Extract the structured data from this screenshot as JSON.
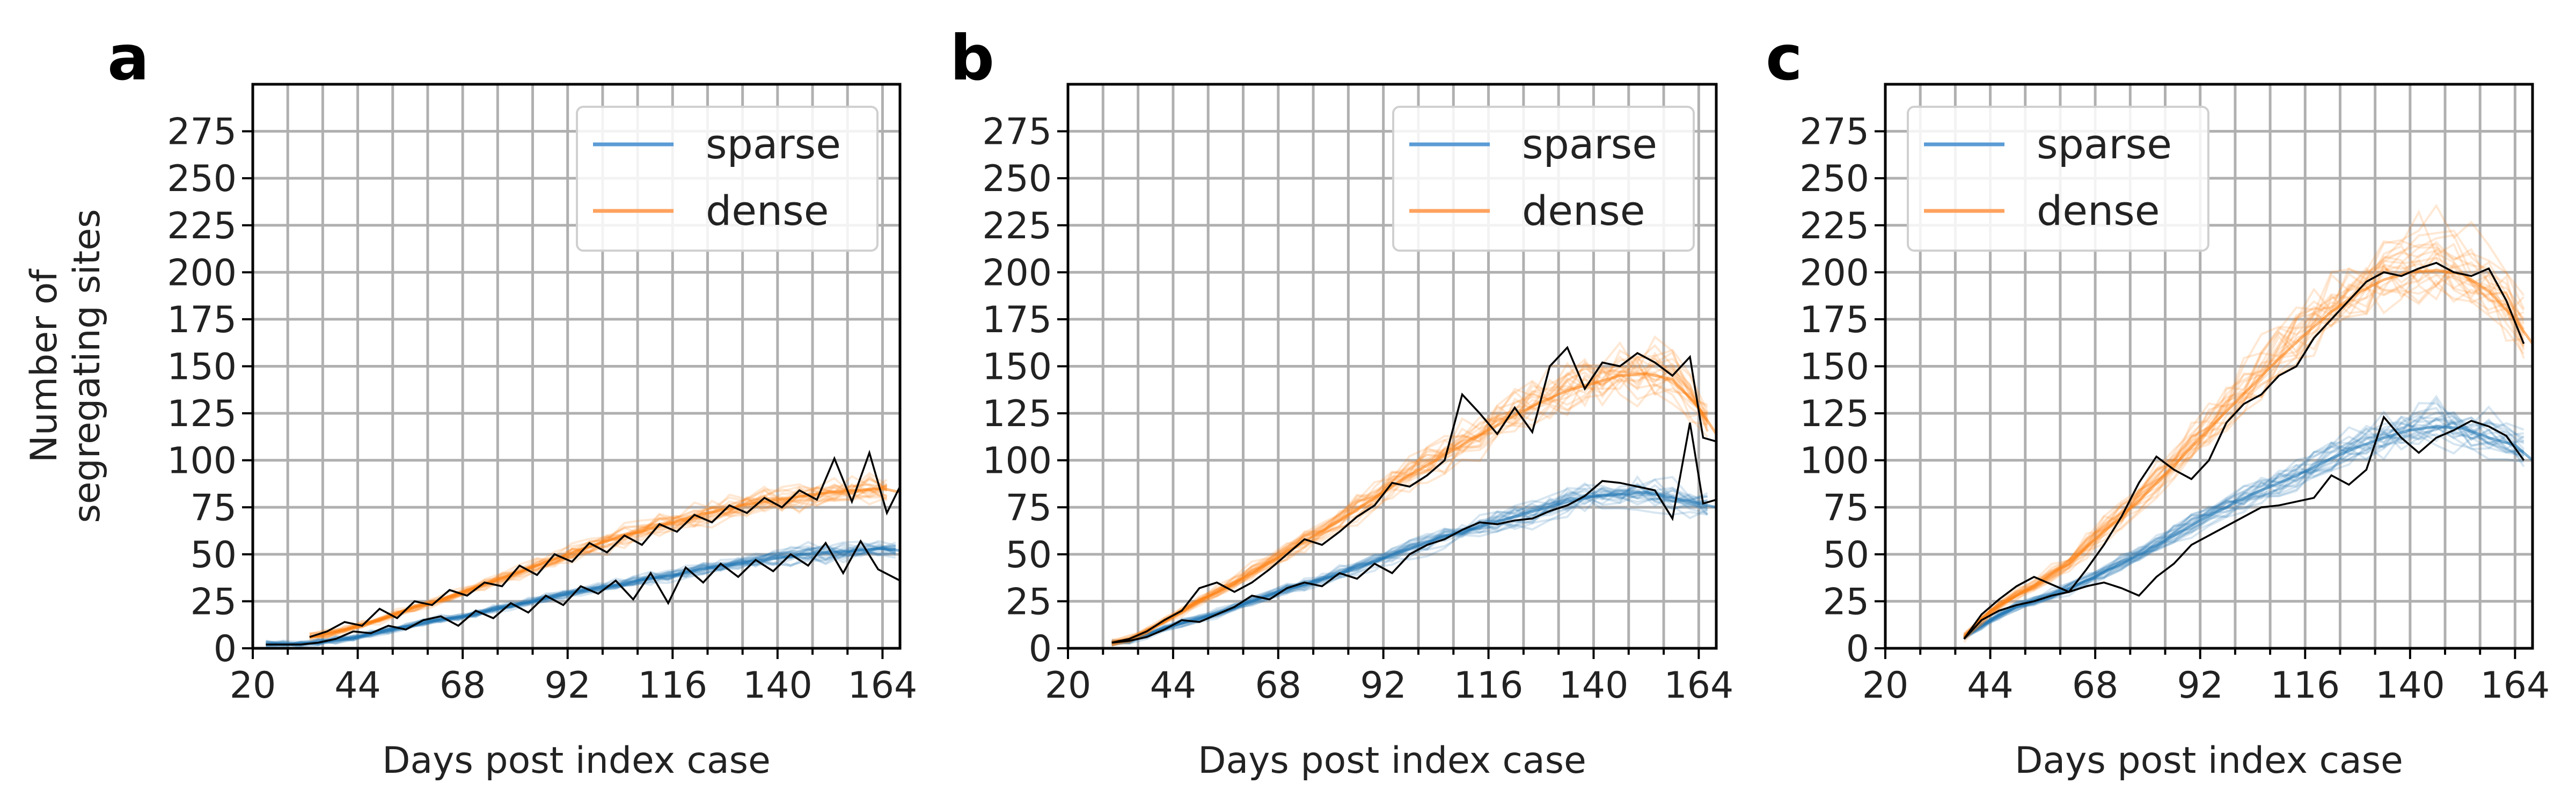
{
  "colors": {
    "sparse": "#1f77b4",
    "dense": "#ff7f0e",
    "observed": "#000000",
    "grid": "#b0b0b0",
    "axis": "#000000",
    "legend_sparse": "#5b9bd5",
    "legend_dense": "#ffa25e"
  },
  "chart_data": [
    {
      "type": "line",
      "panel_label": "a",
      "xlabel": "Days post index case",
      "ylabel": "Number of\nsegregating sites",
      "xlim": [
        20,
        168
      ],
      "ylim": [
        0,
        300
      ],
      "xticks": [
        20,
        44,
        68,
        92,
        116,
        140,
        164
      ],
      "yticks": [
        0,
        25,
        50,
        75,
        100,
        125,
        150,
        175,
        200,
        225,
        250,
        275
      ],
      "grid": true,
      "legend": {
        "placement": "top-right",
        "entries": [
          "sparse",
          "dense"
        ]
      },
      "series": [
        {
          "name": "sparse",
          "x": [
            23,
            30,
            38,
            44,
            50,
            56,
            62,
            68,
            74,
            80,
            86,
            92,
            98,
            104,
            110,
            116,
            122,
            128,
            134,
            140,
            146,
            152,
            158,
            164,
            168
          ],
          "y": [
            2,
            2,
            4,
            6,
            9,
            12,
            15,
            17,
            20,
            23,
            26,
            29,
            32,
            34,
            37,
            39,
            42,
            44,
            46,
            48,
            50,
            51,
            52,
            53,
            52
          ]
        },
        {
          "name": "dense",
          "x": [
            33,
            38,
            44,
            50,
            56,
            62,
            68,
            74,
            80,
            86,
            92,
            98,
            104,
            110,
            116,
            122,
            128,
            134,
            140,
            146,
            152,
            158,
            164,
            168
          ],
          "y": [
            6,
            8,
            12,
            16,
            21,
            25,
            30,
            35,
            40,
            45,
            50,
            55,
            59,
            63,
            67,
            71,
            74,
            77,
            79,
            81,
            83,
            84,
            85,
            83
          ]
        },
        {
          "name": "observed (sparse)",
          "x": [
            23,
            27,
            31,
            35,
            39,
            43,
            47,
            51,
            55,
            59,
            63,
            67,
            71,
            75,
            79,
            83,
            87,
            91,
            95,
            99,
            103,
            107,
            111,
            115,
            119,
            123,
            127,
            131,
            135,
            139,
            143,
            147,
            151,
            155,
            159,
            163,
            168
          ],
          "y": [
            2,
            2,
            2,
            3,
            5,
            9,
            8,
            12,
            10,
            15,
            17,
            12,
            20,
            16,
            24,
            19,
            28,
            23,
            33,
            29,
            36,
            26,
            40,
            24,
            43,
            35,
            45,
            38,
            47,
            41,
            50,
            44,
            56,
            40,
            57,
            42,
            36
          ]
        },
        {
          "name": "observed (dense)",
          "x": [
            33,
            37,
            41,
            45,
            49,
            53,
            57,
            61,
            65,
            69,
            73,
            77,
            81,
            85,
            89,
            93,
            97,
            101,
            105,
            109,
            113,
            117,
            121,
            125,
            129,
            133,
            137,
            141,
            145,
            149,
            153,
            157,
            161,
            165,
            168
          ],
          "y": [
            6,
            9,
            14,
            12,
            21,
            16,
            25,
            23,
            31,
            28,
            35,
            33,
            44,
            39,
            50,
            46,
            56,
            51,
            60,
            55,
            66,
            62,
            71,
            67,
            76,
            72,
            80,
            75,
            84,
            79,
            101,
            78,
            104,
            72,
            86
          ]
        }
      ]
    },
    {
      "type": "line",
      "panel_label": "b",
      "xlabel": "Days post index case",
      "xlim": [
        20,
        168
      ],
      "ylim": [
        0,
        300
      ],
      "xticks": [
        20,
        44,
        68,
        92,
        116,
        140,
        164
      ],
      "yticks": [
        0,
        25,
        50,
        75,
        100,
        125,
        150,
        175,
        200,
        225,
        250,
        275
      ],
      "grid": true,
      "legend": {
        "placement": "top-right",
        "entries": [
          "sparse",
          "dense"
        ]
      },
      "series": [
        {
          "name": "sparse",
          "x": [
            30,
            34,
            38,
            44,
            50,
            56,
            62,
            68,
            74,
            80,
            86,
            92,
            98,
            104,
            110,
            116,
            122,
            128,
            134,
            140,
            146,
            152,
            158,
            164,
            168
          ],
          "y": [
            3,
            4,
            7,
            12,
            16,
            20,
            25,
            30,
            34,
            38,
            43,
            48,
            53,
            58,
            62,
            66,
            70,
            74,
            78,
            81,
            82,
            83,
            80,
            77,
            75
          ]
        },
        {
          "name": "dense",
          "x": [
            30,
            34,
            38,
            44,
            50,
            56,
            62,
            68,
            74,
            80,
            86,
            92,
            98,
            104,
            110,
            116,
            122,
            128,
            134,
            140,
            146,
            152,
            158,
            164,
            168
          ],
          "y": [
            3,
            5,
            9,
            17,
            25,
            32,
            40,
            48,
            57,
            65,
            74,
            83,
            92,
            100,
            108,
            116,
            124,
            131,
            137,
            141,
            145,
            146,
            143,
            128,
            114
          ]
        },
        {
          "name": "observed (sparse)",
          "x": [
            30,
            34,
            38,
            42,
            46,
            50,
            54,
            58,
            62,
            66,
            70,
            74,
            78,
            82,
            86,
            90,
            94,
            98,
            102,
            106,
            110,
            114,
            118,
            122,
            126,
            130,
            134,
            138,
            142,
            146,
            150,
            154,
            158,
            162,
            165,
            168
          ],
          "y": [
            3,
            4,
            6,
            10,
            15,
            14,
            18,
            22,
            28,
            26,
            32,
            35,
            33,
            40,
            37,
            45,
            40,
            50,
            55,
            58,
            63,
            67,
            66,
            68,
            69,
            73,
            76,
            81,
            89,
            88,
            86,
            84,
            69,
            120,
            77,
            79
          ]
        },
        {
          "name": "observed (dense)",
          "x": [
            30,
            34,
            38,
            42,
            46,
            50,
            54,
            58,
            62,
            66,
            70,
            74,
            78,
            82,
            86,
            90,
            94,
            98,
            102,
            106,
            110,
            114,
            118,
            122,
            126,
            130,
            134,
            138,
            142,
            146,
            150,
            154,
            158,
            162,
            165,
            168
          ],
          "y": [
            3,
            5,
            9,
            15,
            20,
            32,
            35,
            30,
            35,
            42,
            50,
            58,
            55,
            62,
            70,
            76,
            88,
            86,
            92,
            100,
            135,
            125,
            114,
            128,
            115,
            150,
            160,
            138,
            152,
            150,
            157,
            152,
            145,
            155,
            112,
            110
          ]
        }
      ]
    },
    {
      "type": "line",
      "panel_label": "c",
      "xlabel": "Days post index case",
      "xlim": [
        20,
        168
      ],
      "ylim": [
        0,
        300
      ],
      "xticks": [
        20,
        44,
        68,
        92,
        116,
        140,
        164
      ],
      "yticks": [
        0,
        25,
        50,
        75,
        100,
        125,
        150,
        175,
        200,
        225,
        250,
        275
      ],
      "grid": true,
      "legend": {
        "placement": "top-left",
        "entries": [
          "sparse",
          "dense"
        ]
      },
      "series": [
        {
          "name": "sparse",
          "x": [
            38,
            44,
            50,
            56,
            62,
            68,
            74,
            80,
            86,
            92,
            98,
            104,
            110,
            116,
            122,
            128,
            134,
            140,
            146,
            152,
            158,
            164,
            168
          ],
          "y": [
            6,
            15,
            22,
            27,
            32,
            38,
            45,
            52,
            60,
            68,
            75,
            82,
            88,
            94,
            101,
            107,
            112,
            116,
            118,
            117,
            112,
            108,
            100
          ]
        },
        {
          "name": "dense",
          "x": [
            38,
            44,
            50,
            56,
            62,
            68,
            74,
            80,
            86,
            92,
            98,
            104,
            110,
            116,
            122,
            128,
            134,
            140,
            146,
            152,
            158,
            164,
            168
          ],
          "y": [
            6,
            20,
            28,
            36,
            45,
            58,
            70,
            83,
            97,
            112,
            126,
            140,
            154,
            167,
            179,
            189,
            196,
            200,
            201,
            199,
            190,
            175,
            162
          ]
        },
        {
          "name": "observed (sparse)",
          "x": [
            38,
            42,
            46,
            50,
            54,
            58,
            62,
            66,
            70,
            74,
            78,
            82,
            86,
            90,
            94,
            98,
            102,
            106,
            110,
            114,
            118,
            122,
            126,
            130,
            134,
            138,
            142,
            146,
            150,
            154,
            158,
            162,
            166
          ],
          "y": [
            5,
            15,
            20,
            23,
            25,
            28,
            30,
            33,
            35,
            32,
            28,
            38,
            45,
            55,
            60,
            65,
            70,
            75,
            76,
            78,
            80,
            92,
            87,
            95,
            123,
            112,
            104,
            112,
            116,
            121,
            118,
            113,
            100
          ]
        },
        {
          "name": "observed (dense)",
          "x": [
            38,
            42,
            46,
            50,
            54,
            58,
            62,
            66,
            70,
            74,
            78,
            82,
            86,
            90,
            94,
            98,
            102,
            106,
            110,
            114,
            118,
            122,
            126,
            130,
            134,
            138,
            142,
            146,
            150,
            154,
            158,
            162,
            166
          ],
          "y": [
            5,
            18,
            26,
            33,
            38,
            34,
            30,
            42,
            55,
            70,
            88,
            102,
            95,
            90,
            100,
            120,
            130,
            135,
            145,
            150,
            165,
            175,
            185,
            195,
            200,
            198,
            202,
            205,
            200,
            198,
            202,
            185,
            162
          ]
        }
      ]
    }
  ]
}
